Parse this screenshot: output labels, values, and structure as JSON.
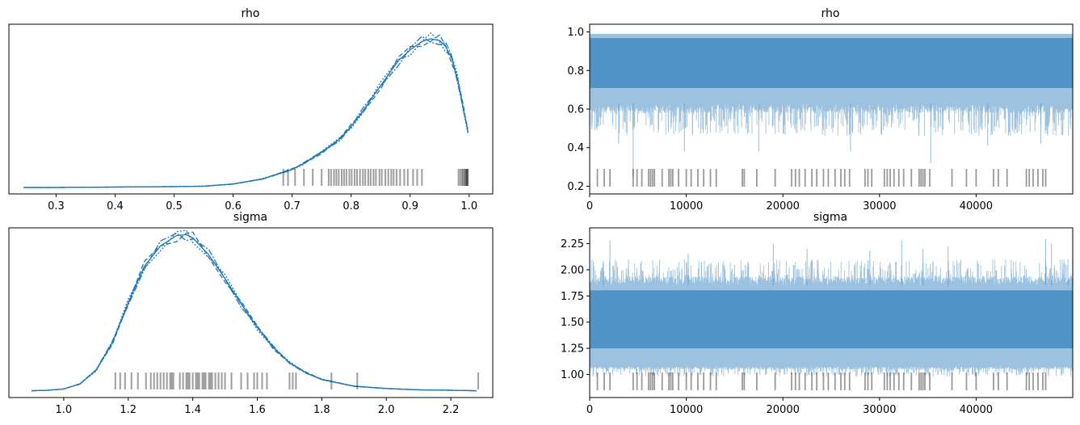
{
  "colors": {
    "line": "#1f77b4",
    "trace": "#4a90c4",
    "rug": "#000000",
    "axis": "#000000"
  },
  "chart_data": [
    {
      "type": "line",
      "title": "rho",
      "xlabel": "",
      "ylabel": "",
      "xlim": [
        0.22,
        1.04
      ],
      "ylim": [
        -0.15,
        3.8
      ],
      "xticks": [
        "0.3",
        "0.4",
        "0.5",
        "0.6",
        "0.7",
        "0.8",
        "0.9",
        "1.0"
      ],
      "xtick_values": [
        0.3,
        0.4,
        0.5,
        0.6,
        0.7,
        0.8,
        0.9,
        1.0
      ],
      "yticks": [],
      "series": [
        {
          "x": [
            0.245,
            0.3,
            0.4,
            0.5,
            0.55,
            0.6,
            0.65,
            0.7,
            0.72,
            0.75,
            0.78,
            0.8,
            0.82,
            0.85,
            0.88,
            0.9,
            0.92,
            0.935,
            0.95,
            0.96,
            0.97,
            0.98,
            0.99,
            0.998
          ],
          "y": [
            0.0,
            0.0,
            0.01,
            0.02,
            0.03,
            0.08,
            0.2,
            0.42,
            0.56,
            0.82,
            1.12,
            1.42,
            1.78,
            2.37,
            2.95,
            3.2,
            3.4,
            3.46,
            3.42,
            3.28,
            3.02,
            2.55,
            1.85,
            1.3
          ]
        }
      ],
      "rug": [
        0.685,
        0.693,
        0.705,
        0.72,
        0.735,
        0.75,
        0.762,
        0.766,
        0.771,
        0.775,
        0.779,
        0.784,
        0.788,
        0.792,
        0.797,
        0.801,
        0.806,
        0.81,
        0.815,
        0.82,
        0.824,
        0.829,
        0.833,
        0.838,
        0.842,
        0.848,
        0.852,
        0.858,
        0.863,
        0.868,
        0.872,
        0.877,
        0.883,
        0.89,
        0.896,
        0.905,
        0.912,
        0.92,
        0.982,
        0.985,
        0.988,
        0.99,
        0.992,
        0.994,
        0.995,
        0.996,
        0.997,
        0.998
      ]
    },
    {
      "type": "line",
      "title": "rho",
      "xlabel": "",
      "ylabel": "",
      "xlim": [
        0,
        49999
      ],
      "ylim": [
        0.16,
        1.04
      ],
      "xticks": [
        "0",
        "10000",
        "20000",
        "30000",
        "40000"
      ],
      "xtick_values": [
        0,
        10000,
        20000,
        30000,
        40000
      ],
      "yticks": [
        "0.2",
        "0.4",
        "0.6",
        "0.8",
        "1.0"
      ],
      "ytick_values": [
        0.2,
        0.4,
        0.6,
        0.8,
        1.0
      ],
      "band": {
        "top": 0.99,
        "dense_low": 0.63,
        "spike_low": 0.46
      },
      "min_spikes": [
        [
          3000,
          0.42
        ],
        [
          4500,
          0.25
        ],
        [
          9800,
          0.38
        ],
        [
          17500,
          0.38
        ],
        [
          27000,
          0.38
        ],
        [
          35300,
          0.32
        ],
        [
          41200,
          0.41
        ],
        [
          46700,
          0.42
        ]
      ],
      "rug": [
        800,
        1500,
        2100,
        4500,
        4900,
        5400,
        6100,
        6300,
        6500,
        6700,
        7500,
        8200,
        8400,
        8600,
        9200,
        10000,
        10500,
        11200,
        11800,
        12500,
        13100,
        15800,
        16000,
        17300,
        19200,
        20900,
        21300,
        21700,
        22300,
        23000,
        23500,
        24200,
        24700,
        25400,
        26000,
        26400,
        26900,
        28500,
        28800,
        29200,
        30500,
        30800,
        31100,
        31500,
        32000,
        32500,
        33300,
        34100,
        34300,
        34500,
        34700,
        35200,
        37500,
        39000,
        40000,
        41800,
        42300,
        43200,
        45200,
        45500,
        45900,
        46400,
        46900,
        47200
      ]
    },
    {
      "type": "line",
      "title": "sigma",
      "xlabel": "",
      "ylabel": "",
      "xlim": [
        0.83,
        2.33
      ],
      "ylim": [
        -0.15,
        3.6
      ],
      "xticks": [
        "1.0",
        "1.2",
        "1.4",
        "1.6",
        "1.8",
        "2.0",
        "2.2"
      ],
      "xtick_values": [
        1.0,
        1.2,
        1.4,
        1.6,
        1.8,
        2.0,
        2.2
      ],
      "yticks": [],
      "series": [
        {
          "x": [
            0.9,
            0.95,
            1.0,
            1.05,
            1.1,
            1.15,
            1.2,
            1.25,
            1.3,
            1.35,
            1.38,
            1.4,
            1.45,
            1.5,
            1.55,
            1.6,
            1.65,
            1.7,
            1.75,
            1.8,
            1.9,
            2.0,
            2.1,
            2.2,
            2.28
          ],
          "y": [
            0.0,
            0.01,
            0.04,
            0.15,
            0.45,
            1.05,
            1.95,
            2.75,
            3.2,
            3.43,
            3.45,
            3.38,
            3.0,
            2.48,
            1.92,
            1.4,
            0.95,
            0.62,
            0.4,
            0.25,
            0.1,
            0.05,
            0.02,
            0.01,
            0.0
          ]
        }
      ],
      "rug": [
        1.16,
        1.175,
        1.19,
        1.21,
        1.23,
        1.255,
        1.27,
        1.28,
        1.29,
        1.3,
        1.31,
        1.32,
        1.33,
        1.335,
        1.34,
        1.36,
        1.37,
        1.38,
        1.385,
        1.39,
        1.4,
        1.41,
        1.415,
        1.42,
        1.43,
        1.435,
        1.44,
        1.45,
        1.455,
        1.46,
        1.47,
        1.48,
        1.49,
        1.5,
        1.52,
        1.55,
        1.57,
        1.59,
        1.6,
        1.615,
        1.63,
        1.7,
        1.71,
        1.72,
        1.83,
        1.91,
        2.285
      ]
    },
    {
      "type": "line",
      "title": "sigma",
      "xlabel": "",
      "ylabel": "",
      "xlim": [
        0,
        49999
      ],
      "ylim": [
        0.78,
        2.4
      ],
      "xticks": [
        "0",
        "10000",
        "20000",
        "30000",
        "40000"
      ],
      "xtick_values": [
        0,
        10000,
        20000,
        30000,
        40000
      ],
      "yticks": [
        "1.00",
        "1.25",
        "1.50",
        "1.75",
        "2.00",
        "2.25"
      ],
      "ytick_values": [
        1.0,
        1.25,
        1.5,
        1.75,
        2.0,
        2.25
      ],
      "band": {
        "top": 1.85,
        "dense_low": 1.08,
        "spike_low": 0.98,
        "spike_high": 2.1
      },
      "max_spikes": [
        [
          1400,
          2.08
        ],
        [
          2100,
          2.28
        ],
        [
          10200,
          2.15
        ],
        [
          19000,
          2.25
        ],
        [
          22500,
          2.2
        ],
        [
          29000,
          2.18
        ],
        [
          32300,
          2.28
        ],
        [
          34500,
          2.2
        ],
        [
          37100,
          2.22
        ],
        [
          47200,
          2.29
        ],
        [
          47800,
          2.25
        ],
        [
          49500,
          2.1
        ]
      ],
      "rug": [
        800,
        1500,
        2100,
        4500,
        4900,
        5400,
        6100,
        6300,
        6500,
        6700,
        7500,
        8200,
        8400,
        8600,
        9200,
        10000,
        10500,
        11200,
        11800,
        12500,
        13100,
        15800,
        16000,
        17300,
        19200,
        20900,
        21300,
        21700,
        22300,
        23000,
        23500,
        24200,
        24700,
        25400,
        26000,
        26400,
        26900,
        28500,
        28800,
        29200,
        30500,
        30800,
        31100,
        31500,
        32000,
        32500,
        33300,
        34100,
        34300,
        34500,
        34700,
        35200,
        37500,
        39000,
        40000,
        41800,
        42300,
        43200,
        45200,
        45500,
        45900,
        46400,
        46900,
        47200
      ]
    }
  ]
}
